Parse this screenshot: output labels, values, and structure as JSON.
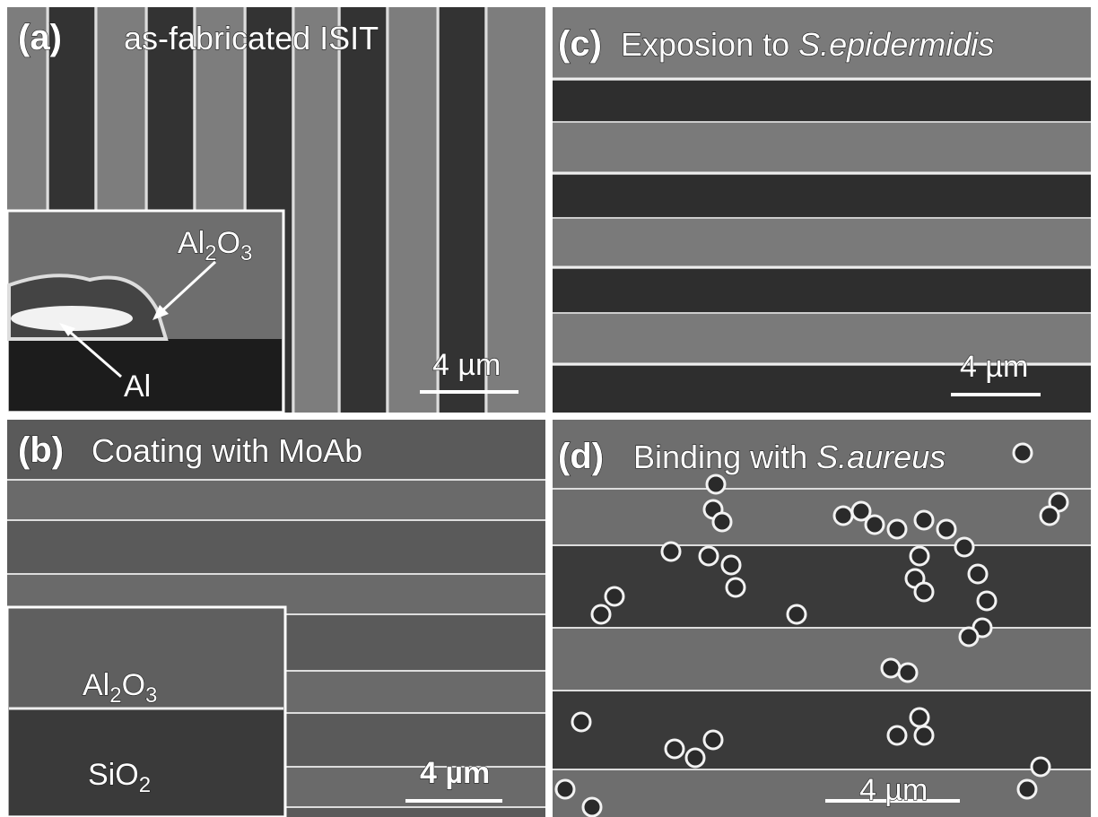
{
  "panels": {
    "a": {
      "label": "(a)",
      "title": "as-fabricated ISIT",
      "scale": "4 µm",
      "inset_top": [
        "Al",
        "2",
        "O",
        "3"
      ],
      "inset_bottom": "Al"
    },
    "b": {
      "label": "(b)",
      "title": "Coating with MoAb",
      "scale": "4 µm",
      "inset_top": [
        "Al",
        "2",
        "O",
        "3"
      ],
      "inset_bottom": [
        "Si",
        "O",
        "2"
      ]
    },
    "c": {
      "label": "(c)",
      "title": [
        "Exposion to ",
        "S.epidermidis"
      ],
      "scale": "4 µm"
    },
    "d": {
      "label": "(d)",
      "title": [
        "Binding with ",
        "S.aureus"
      ],
      "scale": "4 µm"
    }
  }
}
